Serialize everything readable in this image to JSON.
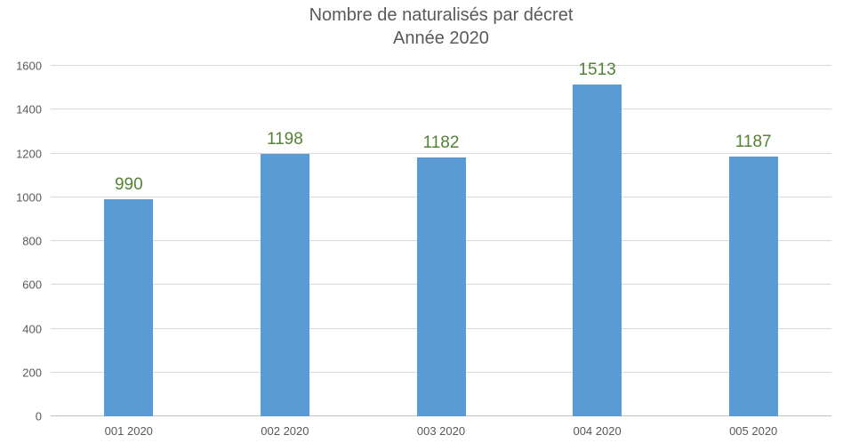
{
  "chart_data": {
    "type": "bar",
    "title": "Nombre de naturalisés par décret",
    "subtitle": "Année 2020",
    "categories": [
      "001 2020",
      "002 2020",
      "003 2020",
      "004 2020",
      "005 2020"
    ],
    "values": [
      990,
      1198,
      1182,
      1513,
      1187
    ],
    "xlabel": "",
    "ylabel": "",
    "ylim": [
      0,
      1600
    ],
    "ytick_step": 200,
    "ytick_labels": [
      "0",
      "200",
      "400",
      "600",
      "800",
      "1000",
      "1200",
      "1400",
      "1600"
    ],
    "grid": true,
    "legend": "none",
    "data_labels_shown": true,
    "colors": {
      "bar": "#5b9bd5",
      "value_label": "#548235",
      "axis_text": "#595959",
      "title_text": "#595959",
      "gridline": "#d9d9d9",
      "axis_line": "#bfbfbf",
      "background": "#ffffff"
    }
  }
}
